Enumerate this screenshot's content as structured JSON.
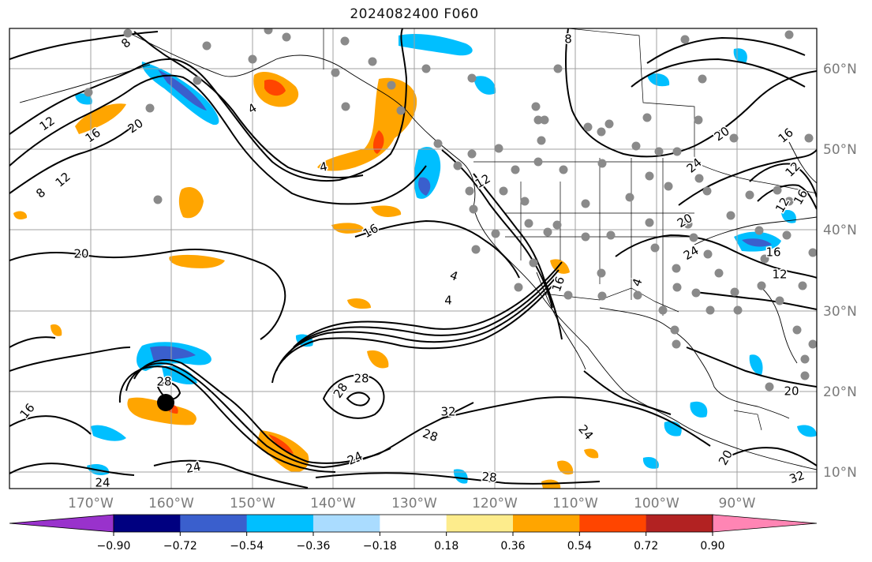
{
  "title": "2024082400 F060",
  "lat_labels": [
    "60°N",
    "50°N",
    "40°N",
    "30°N",
    "20°N",
    "10°N"
  ],
  "lon_labels": [
    "170°W",
    "160°W",
    "150°W",
    "140°W",
    "130°W",
    "120°W",
    "110°W",
    "100°W",
    "90°W"
  ],
  "contour_labels": [
    "8",
    "12",
    "16",
    "20",
    "4",
    "4",
    "12",
    "16",
    "20",
    "16",
    "12",
    "8",
    "4",
    "16",
    "20",
    "24",
    "28",
    "24",
    "24",
    "24",
    "28",
    "28",
    "32",
    "28",
    "24",
    "28",
    "32",
    "20",
    "24",
    "16",
    "12",
    "20",
    "16",
    "12",
    "8",
    "12",
    "16",
    "4",
    "4",
    "20"
  ],
  "colorbar": {
    "ticks": [
      "−0.90",
      "−0.72",
      "−0.54",
      "−0.36",
      "−0.18",
      "0.18",
      "0.36",
      "0.54",
      "0.72",
      "0.90"
    ],
    "colors": [
      "#9932cc",
      "#000080",
      "#3a5fcd",
      "#00bfff",
      "#aadcff",
      "#ffffff",
      "#fdec8c",
      "#ffa500",
      "#ff4500",
      "#b22222",
      "#ff85b4"
    ]
  }
}
